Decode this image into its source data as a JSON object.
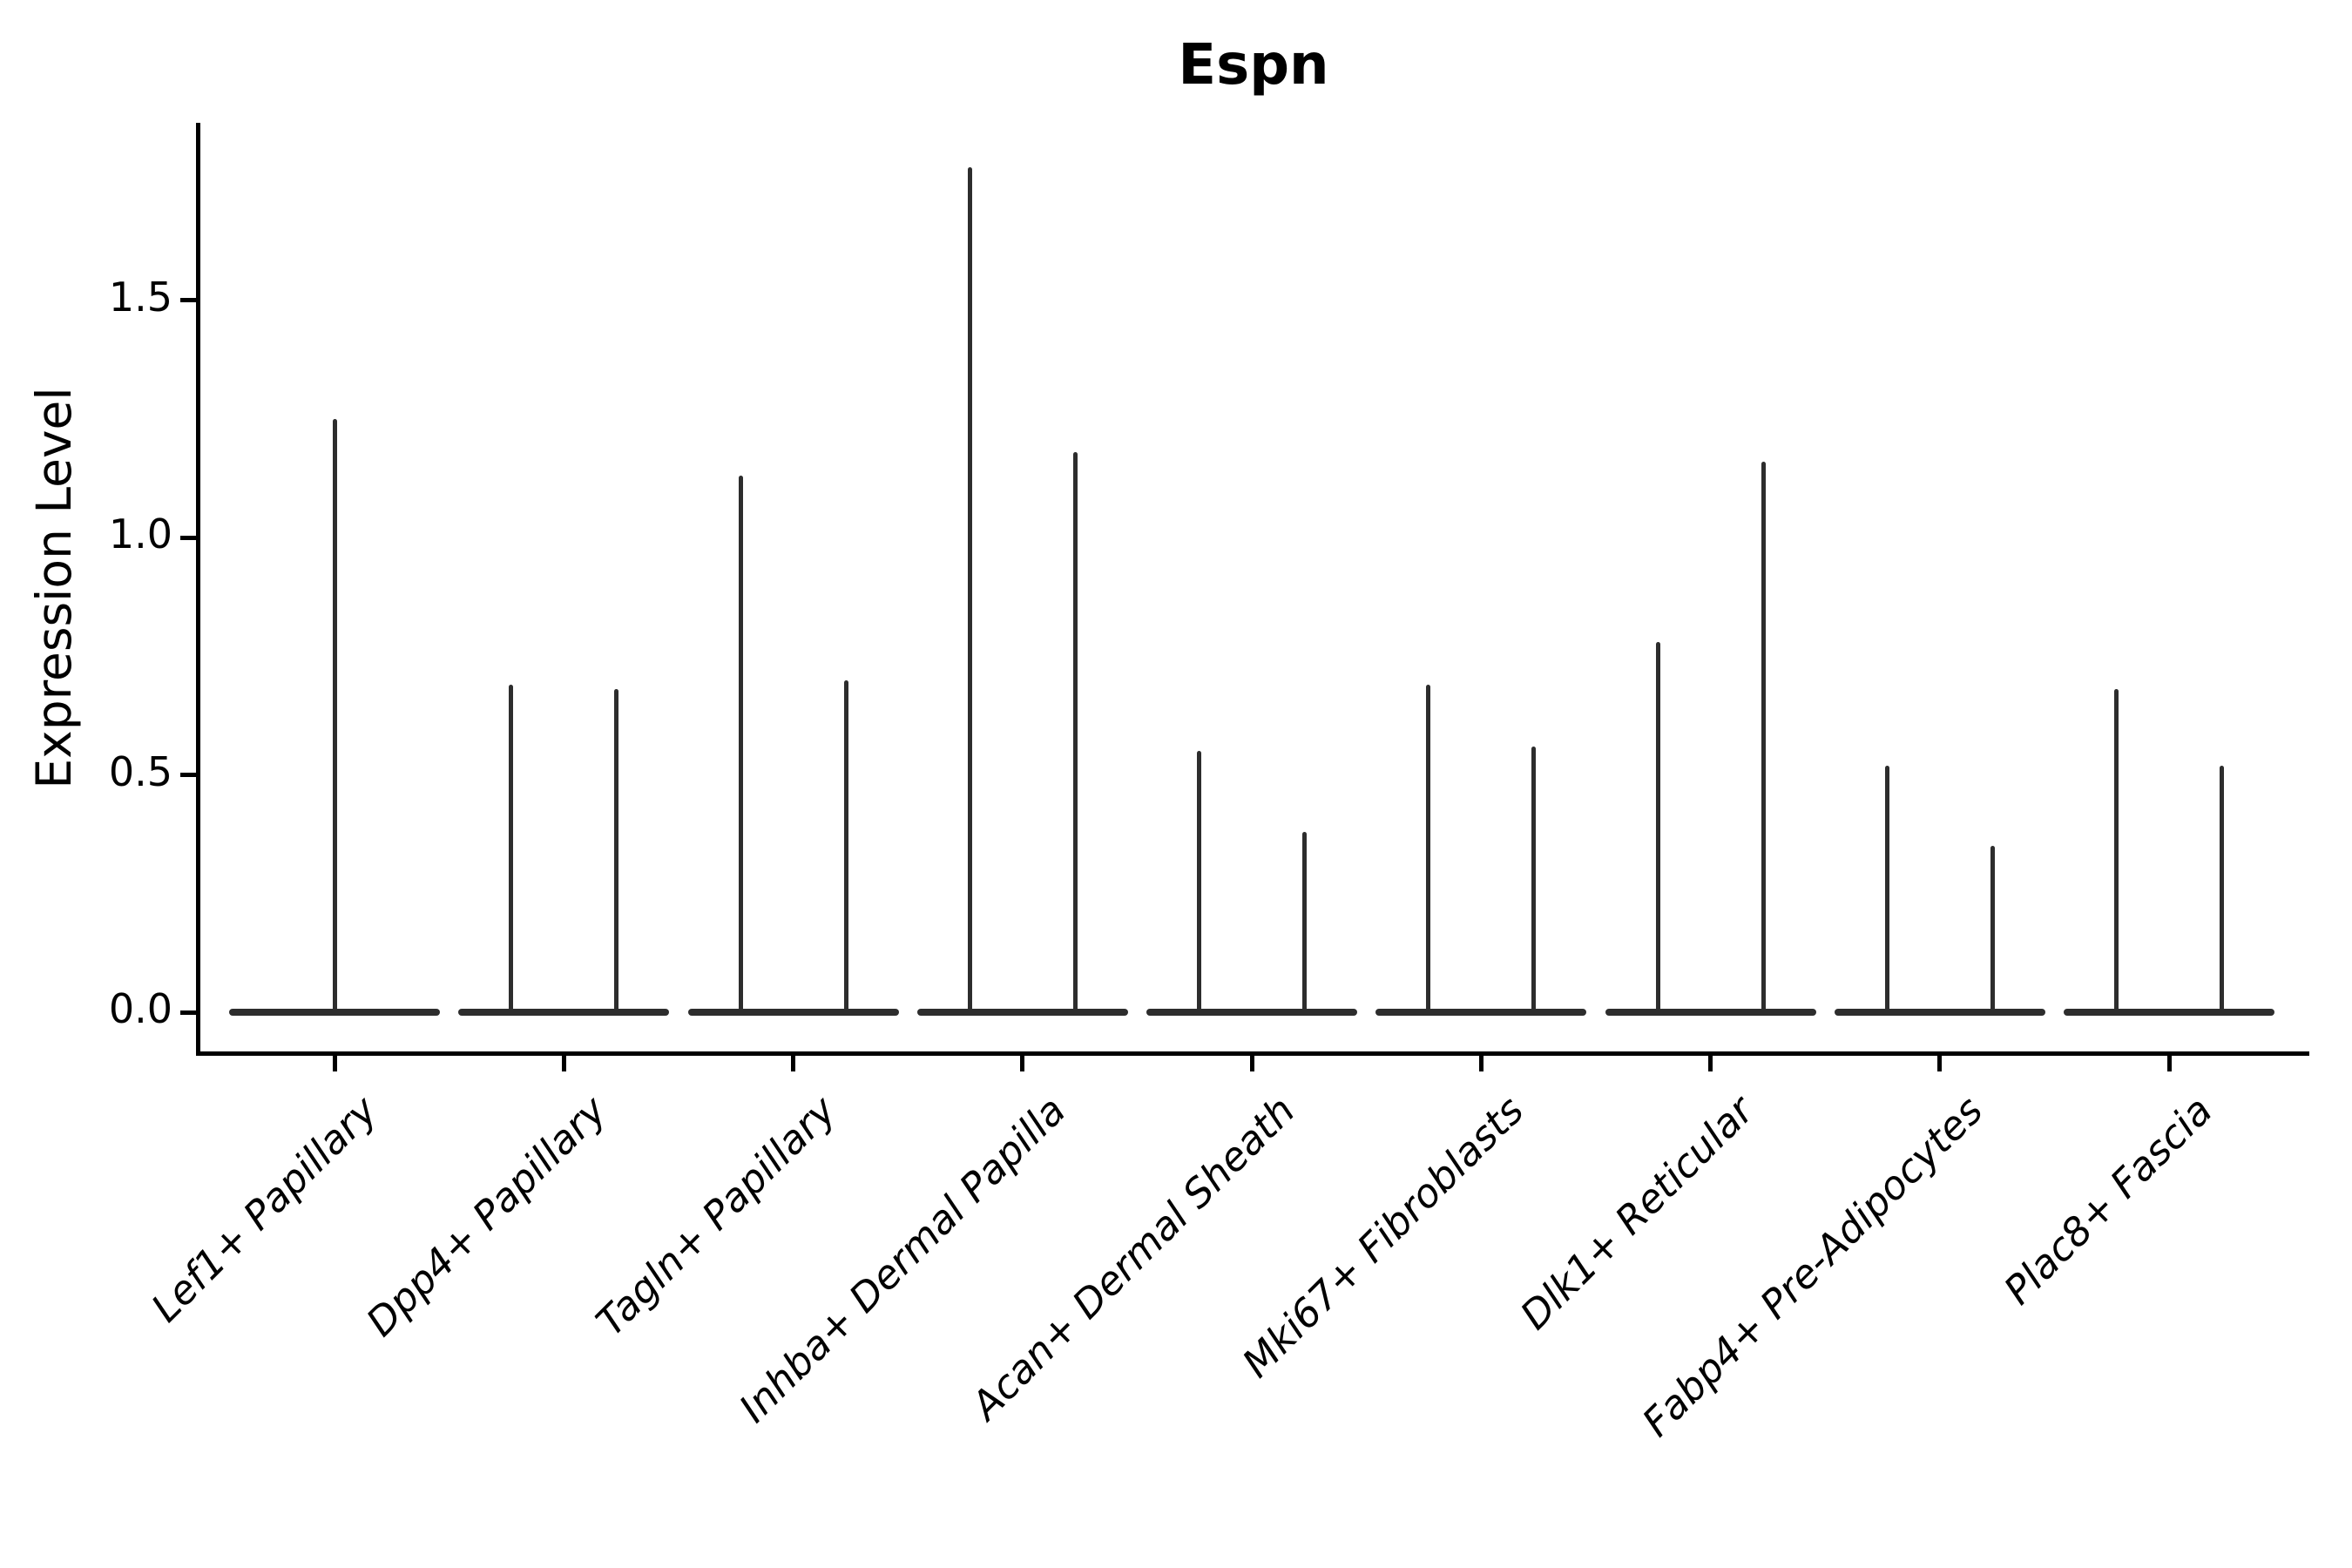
{
  "title": "Espn",
  "y_axis": {
    "label": "Expression Level",
    "tick_labels": [
      "0.0",
      "0.5",
      "1.0",
      "1.5"
    ]
  },
  "chart_data": {
    "type": "violin",
    "title": "Espn",
    "xlabel": "",
    "ylabel": "Expression Level",
    "ylim": [
      0,
      1.87
    ],
    "yticks": [
      0.0,
      0.5,
      1.0,
      1.5
    ],
    "grid": false,
    "legend_position": "none",
    "violin_color": "#2d2d2d",
    "axis_color": "#000000",
    "shape_note": "each violin is collapsed: a flat bar at expression 0 spanning the violin width, with a hairline spike rising to the max expression value",
    "categories": [
      "Lef1+ Papillary",
      "Dpp4+ Papillary",
      "Tagln+ Papillary",
      "Inhba+ Dermal Papilla",
      "Acan+ Dermal Sheath",
      "Mki67+ Fibroblasts",
      "Dlk1+ Reticular",
      "Fabp4+ Pre-Adipocytes",
      "Plac8+ Fascia"
    ],
    "violin_max_per_category": [
      [
        1.25
      ],
      [
        0.69,
        0.68
      ],
      [
        1.13,
        0.7
      ],
      [
        1.78,
        1.18
      ],
      [
        0.55,
        0.38
      ],
      [
        0.69,
        0.56
      ],
      [
        0.78,
        1.16
      ],
      [
        0.52,
        0.35
      ],
      [
        0.68,
        0.52
      ]
    ]
  }
}
